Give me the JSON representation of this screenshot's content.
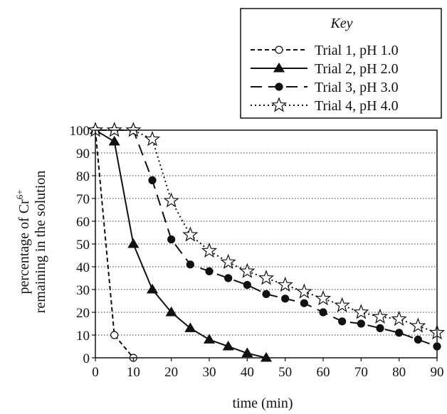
{
  "chart_data": {
    "type": "line",
    "xlabel": "time (min)",
    "ylabel_line1": "percentage of Cr",
    "ylabel_sup": "6+",
    "ylabel_line2": "remaining in the solution",
    "xlim": [
      0,
      90
    ],
    "ylim": [
      0,
      100
    ],
    "xticks": [
      0,
      10,
      20,
      30,
      40,
      50,
      60,
      70,
      80,
      90
    ],
    "yticks": [
      0,
      10,
      20,
      30,
      40,
      50,
      60,
      70,
      80,
      90,
      100
    ],
    "grid": "horizontal dotted",
    "legend": {
      "title": "Key",
      "placement": "top-right"
    },
    "series": [
      {
        "name": "Trial 1, pH 1.0",
        "marker": "open-circle",
        "line": "short-dash",
        "color": "#111111",
        "x": [
          0,
          5,
          10
        ],
        "y": [
          100,
          10,
          0
        ]
      },
      {
        "name": "Trial 2, pH 2.0",
        "marker": "filled-triangle",
        "line": "solid",
        "color": "#111111",
        "x": [
          0,
          5,
          10,
          15,
          20,
          25,
          30,
          35,
          40,
          45
        ],
        "y": [
          100,
          95,
          50,
          30,
          20,
          13,
          8,
          5,
          2,
          0
        ]
      },
      {
        "name": "Trial 3, pH 3.0",
        "marker": "filled-circle",
        "line": "long-dash",
        "color": "#111111",
        "x": [
          0,
          5,
          10,
          15,
          20,
          25,
          30,
          35,
          40,
          45,
          50,
          55,
          60,
          65,
          70,
          75,
          80,
          85,
          90
        ],
        "y": [
          100,
          100,
          100,
          78,
          52,
          41,
          38,
          35,
          32,
          28,
          26,
          24,
          20,
          16,
          15,
          13,
          11,
          8,
          5
        ]
      },
      {
        "name": "Trial 4, pH 4.0",
        "marker": "open-star",
        "line": "dotted",
        "color": "#111111",
        "x": [
          0,
          5,
          10,
          15,
          20,
          25,
          30,
          35,
          40,
          45,
          50,
          55,
          60,
          65,
          70,
          75,
          80,
          85,
          90
        ],
        "y": [
          100,
          100,
          100,
          96,
          69,
          54,
          47,
          42,
          38,
          35,
          32,
          29,
          26,
          23,
          20,
          18,
          17,
          14,
          11
        ]
      }
    ]
  }
}
